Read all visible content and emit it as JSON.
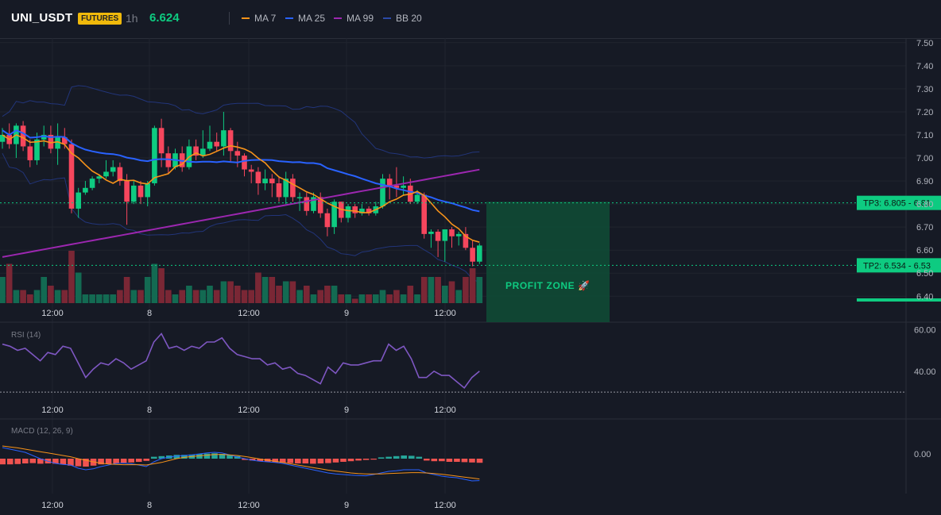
{
  "header": {
    "symbol": "UNI_USDT",
    "badge": "FUTURES",
    "timeframe": "1h",
    "last_price": "6.624",
    "indicators": [
      {
        "label": "MA 7",
        "color": "#f7931a"
      },
      {
        "label": "MA 25",
        "color": "#2962ff"
      },
      {
        "label": "MA 99",
        "color": "#9c27b0"
      },
      {
        "label": "BB 20",
        "color": "#1e3a8a"
      }
    ]
  },
  "colors": {
    "up": "#0ecb81",
    "down": "#f6465d",
    "bg": "#161a25",
    "grid": "#232733"
  },
  "price_axis": {
    "ticks": [
      "7.50",
      "7.40",
      "7.30",
      "7.20",
      "7.10",
      "7.00",
      "6.90",
      "6.80",
      "6.70",
      "6.60",
      "6.50",
      "6.40"
    ],
    "range": [
      6.37,
      7.52
    ]
  },
  "time_axis": [
    "12:00",
    "8",
    "12:00",
    "9",
    "12:00"
  ],
  "targets": [
    {
      "label": "TP3: 6.805",
      "price": 6.805,
      "axis": "6.81"
    },
    {
      "label": "TP2: 6.534",
      "price": 6.534,
      "axis": "6.53"
    }
  ],
  "profit_zone": {
    "label": "PROFIT ZONE 🚀",
    "top": 6.81,
    "bottom": 6.37
  },
  "rsi": {
    "label": "RSI (14)",
    "ticks": [
      "60.00",
      "40.00"
    ],
    "range": [
      27,
      62
    ],
    "values": [
      53,
      52,
      50,
      51,
      48,
      45,
      49,
      48,
      52,
      51,
      44,
      37,
      41,
      44,
      43,
      46,
      44,
      41,
      43,
      45,
      54,
      58,
      51,
      52,
      50,
      52,
      51,
      54,
      54,
      56,
      51,
      48,
      47,
      46,
      46,
      43,
      44,
      41,
      42,
      39,
      38,
      36,
      34,
      42,
      39,
      44,
      43,
      43,
      44,
      45,
      45,
      53,
      50,
      52,
      46,
      37,
      37,
      40,
      38,
      38,
      35,
      32,
      37,
      40
    ],
    "oversold": 30
  },
  "macd": {
    "label": "MACD (12, 26, 9)",
    "ticks": [
      "0.00"
    ],
    "hist": [
      -0.018,
      -0.018,
      -0.017,
      -0.015,
      -0.014,
      -0.016,
      -0.015,
      -0.016,
      -0.018,
      -0.022,
      -0.024,
      -0.025,
      -0.022,
      -0.018,
      -0.016,
      -0.015,
      -0.013,
      -0.012,
      -0.01,
      -0.007,
      0.006,
      0.008,
      0.01,
      0.012,
      0.012,
      0.013,
      0.015,
      0.016,
      0.017,
      0.015,
      0.012,
      0.008,
      -0.004,
      -0.006,
      -0.008,
      -0.01,
      -0.012,
      -0.013,
      -0.014,
      -0.015,
      -0.015,
      -0.016,
      -0.015,
      -0.014,
      -0.012,
      -0.01,
      -0.008,
      -0.006,
      -0.004,
      -0.003,
      0.004,
      0.006,
      0.008,
      0.01,
      0.009,
      0.006,
      -0.006,
      -0.008,
      -0.008,
      -0.01,
      -0.01,
      -0.011,
      -0.012,
      -0.013
    ],
    "macd": [
      0.035,
      0.03,
      0.025,
      0.02,
      0.01,
      0.0,
      -0.008,
      -0.015,
      -0.018,
      -0.02,
      -0.03,
      -0.035,
      -0.032,
      -0.025,
      -0.02,
      -0.015,
      -0.014,
      -0.016,
      -0.02,
      -0.025,
      -0.01,
      0.0,
      0.005,
      0.008,
      0.01,
      0.012,
      0.015,
      0.018,
      0.02,
      0.018,
      0.012,
      0.005,
      0.0,
      -0.005,
      -0.008,
      -0.01,
      -0.012,
      -0.015,
      -0.02,
      -0.025,
      -0.03,
      -0.035,
      -0.04,
      -0.045,
      -0.048,
      -0.05,
      -0.052,
      -0.053,
      -0.054,
      -0.05,
      -0.045,
      -0.04,
      -0.038,
      -0.035,
      -0.035,
      -0.035,
      -0.045,
      -0.05,
      -0.055,
      -0.058,
      -0.06,
      -0.065,
      -0.07,
      -0.069
    ],
    "signal": [
      0.04,
      0.037,
      0.034,
      0.03,
      0.026,
      0.022,
      0.018,
      0.014,
      0.01,
      0.006,
      0.0,
      -0.005,
      -0.01,
      -0.014,
      -0.017,
      -0.018,
      -0.019,
      -0.019,
      -0.019,
      -0.02,
      -0.016,
      -0.012,
      -0.006,
      0.0,
      0.004,
      0.007,
      0.009,
      0.011,
      0.013,
      0.013,
      0.012,
      0.01,
      0.007,
      0.003,
      -0.001,
      -0.005,
      -0.008,
      -0.012,
      -0.016,
      -0.02,
      -0.024,
      -0.028,
      -0.032,
      -0.036,
      -0.039,
      -0.042,
      -0.045,
      -0.047,
      -0.048,
      -0.048,
      -0.048,
      -0.047,
      -0.046,
      -0.045,
      -0.044,
      -0.044,
      -0.045,
      -0.047,
      -0.049,
      -0.052,
      -0.055,
      -0.058,
      -0.061,
      -0.064
    ]
  },
  "candles": [
    [
      7.07,
      7.1,
      7.04,
      7.13
    ],
    [
      7.1,
      7.06,
      7.04,
      7.15
    ],
    [
      7.06,
      7.14,
      7.0,
      7.15
    ],
    [
      7.14,
      7.05,
      7.03,
      7.16
    ],
    [
      7.05,
      6.99,
      6.96,
      7.08
    ],
    [
      6.99,
      7.08,
      6.97,
      7.11
    ],
    [
      7.08,
      7.1,
      7.05,
      7.14
    ],
    [
      7.1,
      7.04,
      7.02,
      7.14
    ],
    [
      7.04,
      7.09,
      6.97,
      7.15
    ],
    [
      7.09,
      7.06,
      7.04,
      7.13
    ],
    [
      7.06,
      6.78,
      6.76,
      7.08
    ],
    [
      6.78,
      6.85,
      6.74,
      6.87
    ],
    [
      6.85,
      6.87,
      6.84,
      6.9
    ],
    [
      6.87,
      6.91,
      6.86,
      6.92
    ],
    [
      6.91,
      6.92,
      6.89,
      6.93
    ],
    [
      6.92,
      6.94,
      6.91,
      6.99
    ],
    [
      6.94,
      6.96,
      6.92,
      6.99
    ],
    [
      6.96,
      6.9,
      6.88,
      6.98
    ],
    [
      6.9,
      6.81,
      6.71,
      6.93
    ],
    [
      6.81,
      6.88,
      6.8,
      6.9
    ],
    [
      6.88,
      6.83,
      6.8,
      6.9
    ],
    [
      6.83,
      6.89,
      6.79,
      6.9
    ],
    [
      6.89,
      7.13,
      6.88,
      7.14
    ],
    [
      7.13,
      7.02,
      6.96,
      7.17
    ],
    [
      7.02,
      6.96,
      6.93,
      7.05
    ],
    [
      6.96,
      7.02,
      6.95,
      7.04
    ],
    [
      7.02,
      6.96,
      6.94,
      7.05
    ],
    [
      6.96,
      7.05,
      6.95,
      7.08
    ],
    [
      7.05,
      7.01,
      6.99,
      7.08
    ],
    [
      7.01,
      7.04,
      7.0,
      7.12
    ],
    [
      7.04,
      7.07,
      7.03,
      7.14
    ],
    [
      7.07,
      7.05,
      7.03,
      7.11
    ],
    [
      7.05,
      7.12,
      7.01,
      7.2
    ],
    [
      7.12,
      7.03,
      6.98,
      7.13
    ],
    [
      7.03,
      7.01,
      6.96,
      7.07
    ],
    [
      7.01,
      6.95,
      6.92,
      7.02
    ],
    [
      6.95,
      6.94,
      6.89,
      6.97
    ],
    [
      6.94,
      6.89,
      6.84,
      6.96
    ],
    [
      6.89,
      6.91,
      6.86,
      6.95
    ],
    [
      6.91,
      6.89,
      6.83,
      6.93
    ],
    [
      6.89,
      6.83,
      6.81,
      6.92
    ],
    [
      6.83,
      6.91,
      6.8,
      6.94
    ],
    [
      6.91,
      6.83,
      6.81,
      6.93
    ],
    [
      6.83,
      6.83,
      6.77,
      6.85
    ],
    [
      6.83,
      6.77,
      6.75,
      6.85
    ],
    [
      6.77,
      6.83,
      6.76,
      6.85
    ],
    [
      6.83,
      6.76,
      6.74,
      6.85
    ],
    [
      6.76,
      6.7,
      6.66,
      6.78
    ],
    [
      6.7,
      6.81,
      6.67,
      6.82
    ],
    [
      6.81,
      6.74,
      6.72,
      6.81
    ],
    [
      6.74,
      6.79,
      6.72,
      6.8
    ],
    [
      6.79,
      6.76,
      6.74,
      6.8
    ],
    [
      6.76,
      6.78,
      6.75,
      6.8
    ],
    [
      6.78,
      6.76,
      6.75,
      6.79
    ],
    [
      6.76,
      6.79,
      6.75,
      6.81
    ],
    [
      6.79,
      6.91,
      6.78,
      6.93
    ],
    [
      6.91,
      6.88,
      6.82,
      6.93
    ],
    [
      6.88,
      6.87,
      6.83,
      6.96
    ],
    [
      6.87,
      6.88,
      6.84,
      6.92
    ],
    [
      6.88,
      6.81,
      6.8,
      6.91
    ],
    [
      6.81,
      6.84,
      6.8,
      6.86
    ],
    [
      6.84,
      6.67,
      6.65,
      6.85
    ],
    [
      6.67,
      6.68,
      6.61,
      6.69
    ],
    [
      6.68,
      6.64,
      6.57,
      6.69
    ]
  ],
  "tail_candles": [
    [
      6.64,
      6.69,
      6.55,
      6.69
    ],
    [
      6.69,
      6.66,
      6.61,
      6.7
    ],
    [
      6.66,
      6.67,
      6.62,
      6.68
    ],
    [
      6.67,
      6.61,
      6.6,
      6.7
    ],
    [
      6.61,
      6.55,
      6.53,
      6.64
    ],
    [
      6.55,
      6.62,
      6.54,
      6.63
    ]
  ]
}
